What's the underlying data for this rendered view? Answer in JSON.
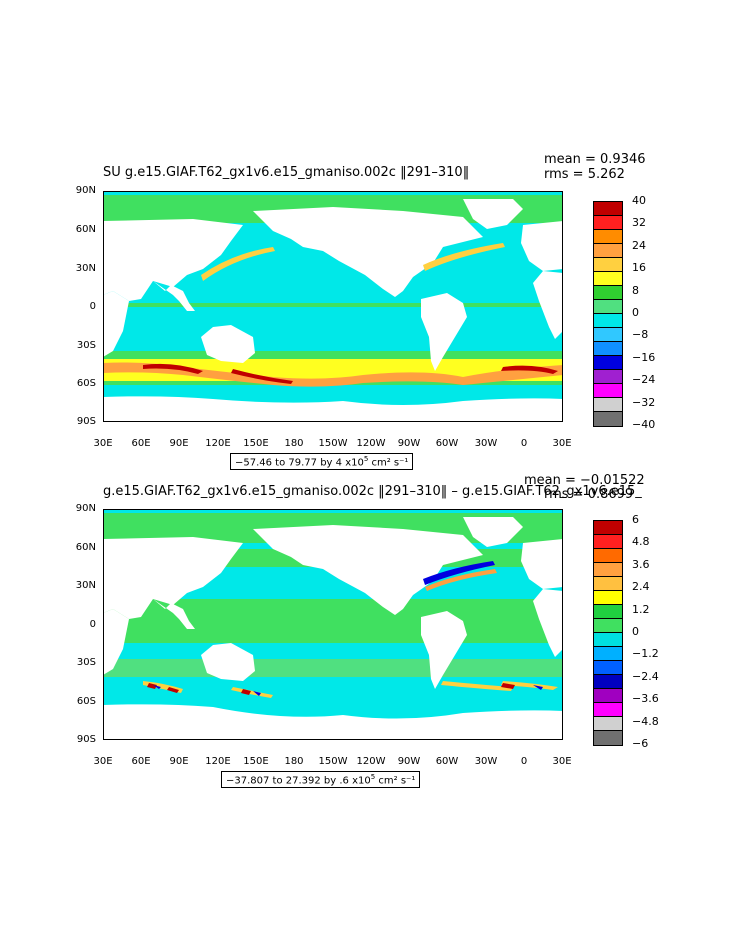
{
  "panel1": {
    "title": "SU g.e15.GIAF.T62_gx1v6.e15_gmaniso.002c ‖291–310‖",
    "mean": "mean = 0.9346",
    "rms": "rms = 5.262",
    "range_text": "−57.46 to 79.77 by 4 x10",
    "range_exp": "5",
    "range_unit": " cm² s⁻¹",
    "colorbar_labels": [
      "40",
      "32",
      "24",
      "16",
      "8",
      "0",
      "−8",
      "−16",
      "−24",
      "−32",
      "−40"
    ]
  },
  "panel2": {
    "title": "g.e15.GIAF.T62_gx1v6.e15_gmaniso.002c ‖291–310‖ – g.e15.GIAF.T62_gx1v6.e15_",
    "mean": "mean = −0.01522",
    "rms": "rms = 0.8699",
    "range_text": "−37.807 to 27.392 by .6 x10",
    "range_exp": "5",
    "range_unit": " cm² s⁻¹",
    "colorbar_labels": [
      "6",
      "4.8",
      "3.6",
      "2.4",
      "1.2",
      "0",
      "−1.2",
      "−2.4",
      "−3.6",
      "−4.8",
      "−6"
    ]
  },
  "lat_labels": [
    "90N",
    "60N",
    "30N",
    "0",
    "30S",
    "60S",
    "90S"
  ],
  "lon_labels": [
    "30E",
    "60E",
    "90E",
    "120E",
    "150E",
    "180",
    "150W",
    "120W",
    "90W",
    "60W",
    "30W",
    "0",
    "30E"
  ],
  "colors": {
    "scale": [
      "#c00000",
      "#ff2020",
      "#ff6a00",
      "#ffa040",
      "#ffc040",
      "#ffff00",
      "#20d040",
      "#40e060",
      "#00e0e0",
      "#00b0ff",
      "#0060ff",
      "#0000c0",
      "#a000c0",
      "#ff00ff",
      "#d0d0d0",
      "#707070"
    ],
    "cbar1": [
      "#c00000",
      "#ff2020",
      "#ff8c00",
      "#ffa040",
      "#ffd040",
      "#ffff20",
      "#30d030",
      "#50e080",
      "#00e8e8",
      "#30c8ff",
      "#1090ff",
      "#0000e0",
      "#a020d0",
      "#ff00ff",
      "#d0d0d0",
      "#707070"
    ]
  }
}
